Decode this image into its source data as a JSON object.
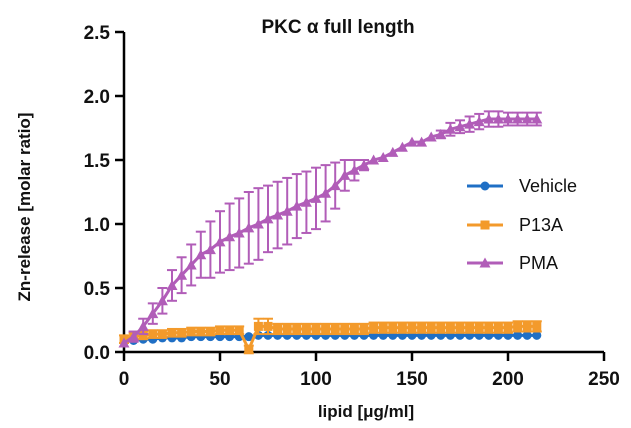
{
  "chart_data": {
    "type": "line",
    "title": "PKC α full length",
    "xlabel": "lipid [μg/ml]",
    "ylabel": "Zn-release [molar ratio]",
    "xlim": [
      0,
      250
    ],
    "ylim": [
      0,
      2.5
    ],
    "x_ticks": [
      "0",
      "50",
      "100",
      "150",
      "200",
      "250"
    ],
    "y_ticks": [
      "0.0",
      "0.5",
      "1.0",
      "1.5",
      "2.0",
      "2.5"
    ],
    "grid": false,
    "legend_position": "right",
    "x": [
      0,
      5,
      10,
      15,
      20,
      25,
      30,
      35,
      40,
      45,
      50,
      55,
      60,
      65,
      70,
      75,
      80,
      85,
      90,
      95,
      100,
      105,
      110,
      115,
      120,
      125,
      130,
      135,
      140,
      145,
      150,
      155,
      160,
      165,
      170,
      175,
      180,
      185,
      190,
      195,
      200,
      205,
      210,
      215
    ],
    "series": [
      {
        "name": "Vehicle",
        "color": "#1f6fc5",
        "marker": "circle",
        "values": [
          0.08,
          0.09,
          0.1,
          0.1,
          0.11,
          0.11,
          0.11,
          0.12,
          0.12,
          0.12,
          0.12,
          0.12,
          0.12,
          0.12,
          0.13,
          0.13,
          0.13,
          0.13,
          0.13,
          0.13,
          0.13,
          0.13,
          0.13,
          0.13,
          0.13,
          0.13,
          0.13,
          0.13,
          0.13,
          0.13,
          0.13,
          0.13,
          0.13,
          0.13,
          0.13,
          0.13,
          0.13,
          0.13,
          0.13,
          0.13,
          0.13,
          0.13,
          0.13,
          0.13
        ],
        "errors": [
          0.02,
          0.02,
          0.02,
          0.02,
          0.02,
          0.02,
          0.02,
          0.02,
          0.02,
          0.02,
          0.02,
          0.02,
          0.02,
          0.02,
          0.02,
          0.02,
          0.02,
          0.02,
          0.02,
          0.02,
          0.02,
          0.02,
          0.02,
          0.02,
          0.02,
          0.02,
          0.02,
          0.02,
          0.02,
          0.02,
          0.02,
          0.02,
          0.02,
          0.02,
          0.02,
          0.02,
          0.02,
          0.02,
          0.02,
          0.02,
          0.02,
          0.02,
          0.02,
          0.02
        ]
      },
      {
        "name": "P13A",
        "color": "#f39a2b",
        "marker": "square",
        "values": [
          0.1,
          0.12,
          0.13,
          0.14,
          0.14,
          0.15,
          0.15,
          0.16,
          0.16,
          0.16,
          0.17,
          0.17,
          0.17,
          0.02,
          0.2,
          0.2,
          0.18,
          0.18,
          0.18,
          0.18,
          0.18,
          0.18,
          0.18,
          0.18,
          0.18,
          0.18,
          0.19,
          0.19,
          0.19,
          0.19,
          0.19,
          0.19,
          0.19,
          0.19,
          0.19,
          0.19,
          0.19,
          0.19,
          0.19,
          0.19,
          0.19,
          0.2,
          0.2,
          0.2
        ],
        "errors": [
          0.03,
          0.03,
          0.03,
          0.03,
          0.03,
          0.03,
          0.03,
          0.03,
          0.03,
          0.03,
          0.03,
          0.03,
          0.03,
          0.03,
          0.06,
          0.06,
          0.04,
          0.04,
          0.04,
          0.04,
          0.04,
          0.04,
          0.04,
          0.04,
          0.04,
          0.04,
          0.04,
          0.04,
          0.04,
          0.04,
          0.04,
          0.04,
          0.04,
          0.04,
          0.04,
          0.04,
          0.04,
          0.04,
          0.04,
          0.04,
          0.04,
          0.04,
          0.04,
          0.04
        ]
      },
      {
        "name": "PMA",
        "color": "#b15db8",
        "marker": "triangle",
        "values": [
          0.07,
          0.12,
          0.2,
          0.3,
          0.4,
          0.52,
          0.6,
          0.68,
          0.76,
          0.8,
          0.86,
          0.9,
          0.93,
          0.97,
          1.0,
          1.04,
          1.07,
          1.1,
          1.14,
          1.17,
          1.2,
          1.24,
          1.3,
          1.38,
          1.42,
          1.46,
          1.5,
          1.52,
          1.56,
          1.6,
          1.64,
          1.64,
          1.68,
          1.7,
          1.74,
          1.76,
          1.78,
          1.8,
          1.82,
          1.82,
          1.82,
          1.82,
          1.82,
          1.82
        ],
        "errors": [
          0.02,
          0.04,
          0.06,
          0.08,
          0.1,
          0.12,
          0.14,
          0.16,
          0.18,
          0.22,
          0.24,
          0.26,
          0.27,
          0.28,
          0.28,
          0.26,
          0.26,
          0.26,
          0.25,
          0.24,
          0.24,
          0.22,
          0.18,
          0.12,
          0.08,
          0.04,
          0.02,
          0.02,
          0.02,
          0.02,
          0.02,
          0.02,
          0.02,
          0.03,
          0.05,
          0.05,
          0.06,
          0.06,
          0.06,
          0.06,
          0.05,
          0.05,
          0.05,
          0.05
        ]
      }
    ]
  }
}
